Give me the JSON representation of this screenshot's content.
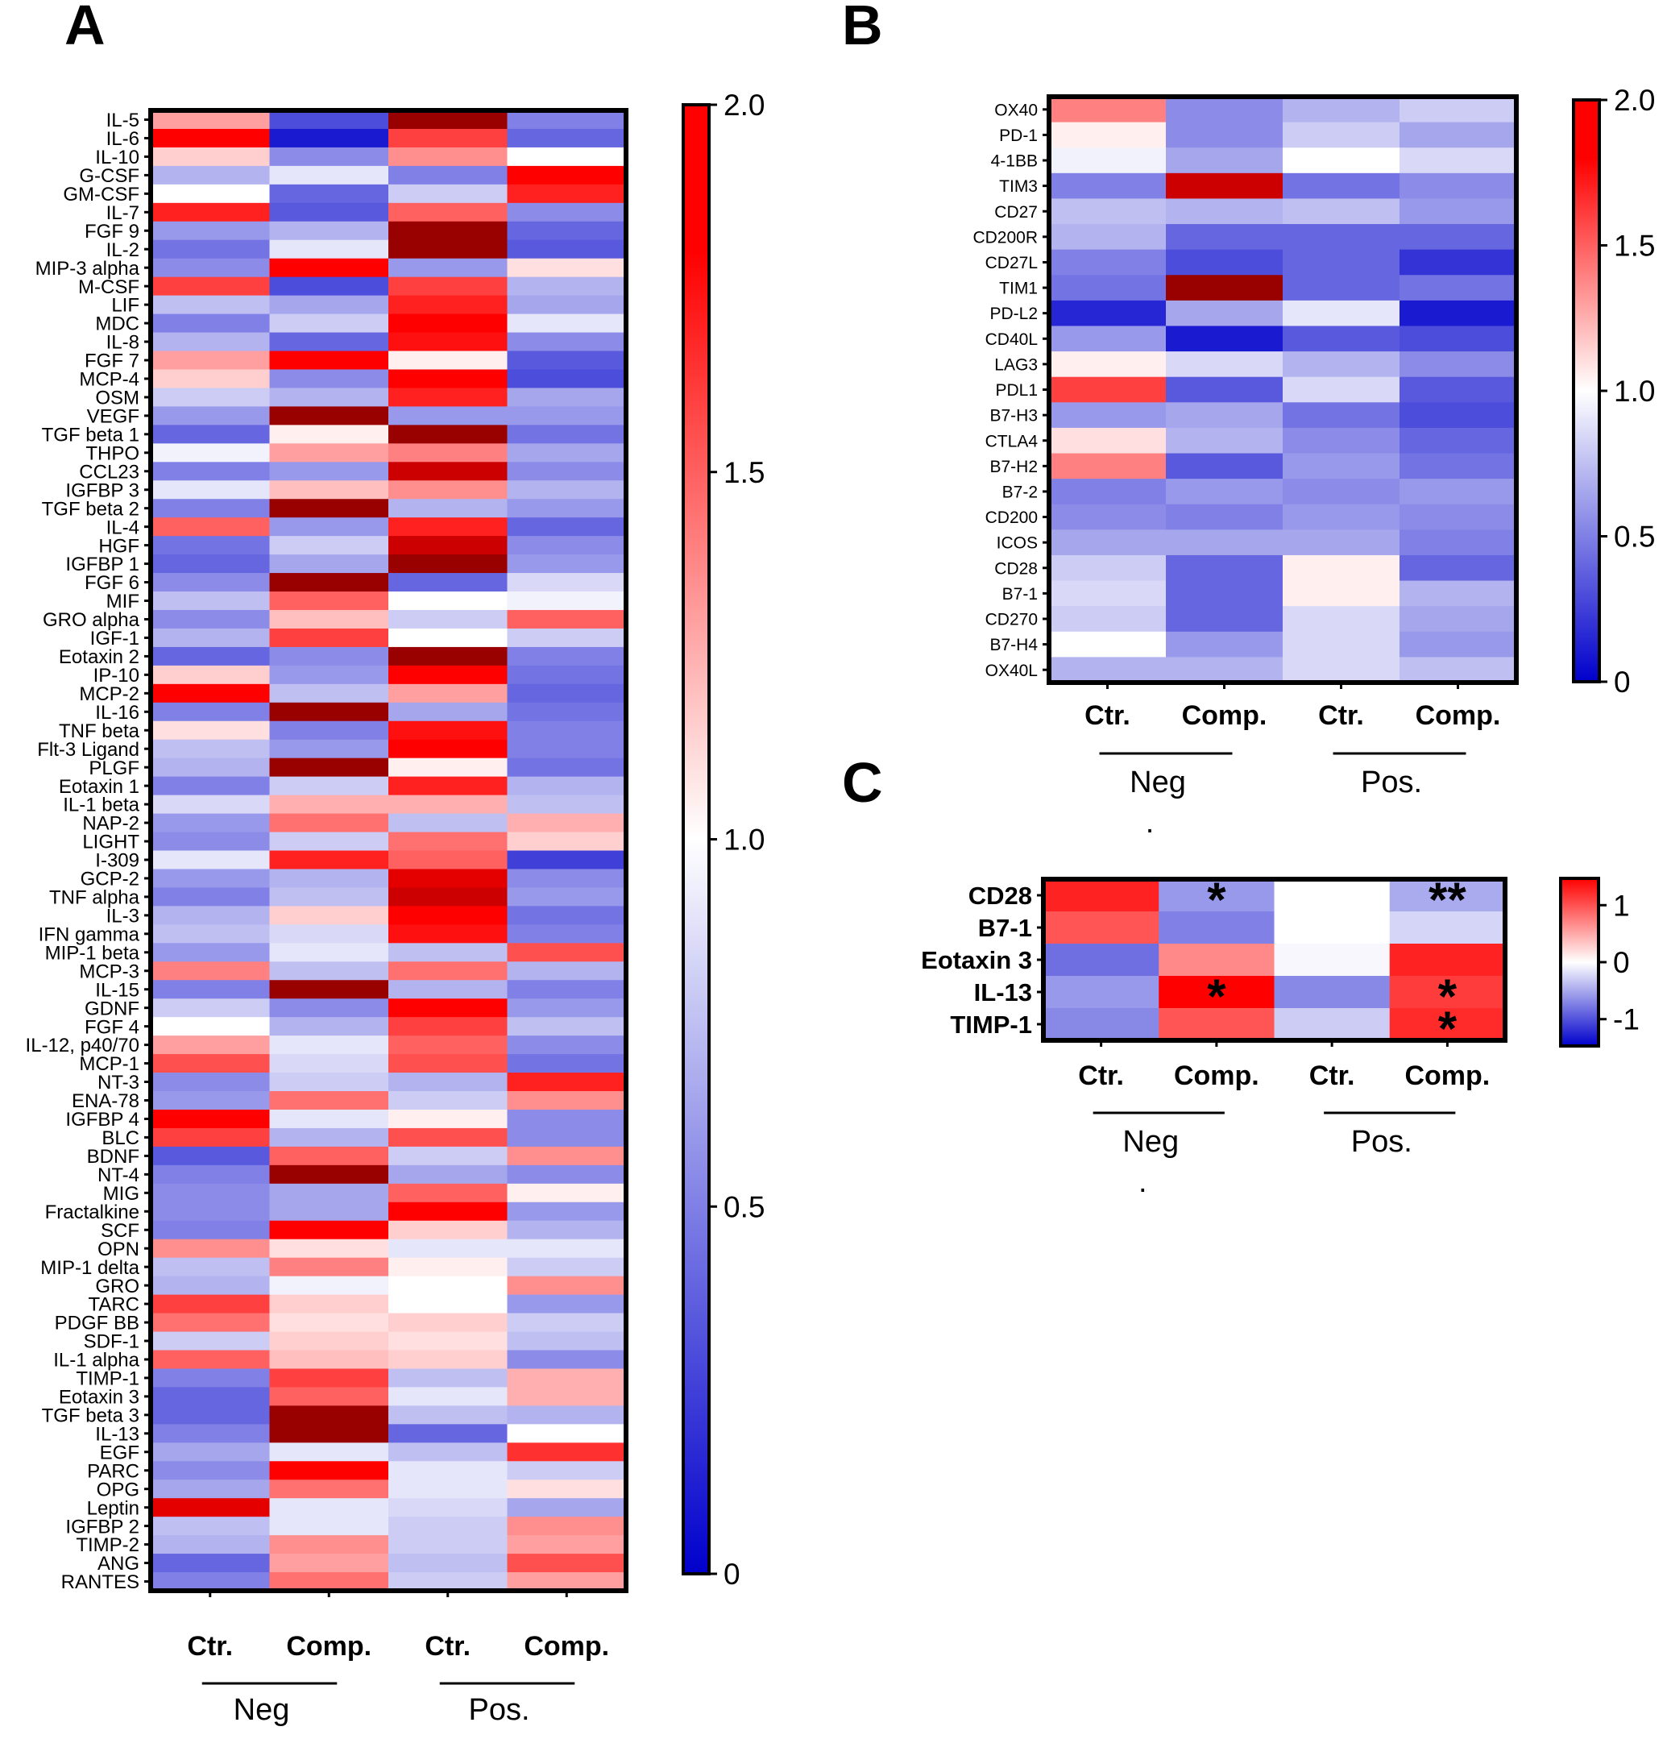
{
  "colors": {
    "low": "#0000cc",
    "mid": "#ffffff",
    "high": "#ff0000",
    "max": "#990000"
  },
  "chart_data": [
    {
      "panel": "A",
      "type": "heatmap",
      "columns": [
        "Ctr.",
        "Comp.",
        "Ctr.",
        "Comp."
      ],
      "groups": [
        {
          "label": "Neg",
          "note": "."
        },
        {
          "label": "Pos.",
          "note": ""
        }
      ],
      "scale": {
        "min": 0,
        "max": 2,
        "ticks": [
          "2.0",
          "1.5",
          "1.0",
          "0.5",
          "0"
        ]
      },
      "rows": [
        "IL-5",
        "IL-6",
        "IL-10",
        "G-CSF",
        "GM-CSF",
        "IL-7",
        "FGF 9",
        "IL-2",
        "MIP-3 alpha",
        "M-CSF",
        "LIF",
        "MDC",
        "IL-8",
        "FGF 7",
        "MCP-4",
        "OSM",
        "VEGF",
        "TGF beta 1",
        "THPO",
        "CCL23",
        "IGFBP 3",
        "TGF beta 2",
        "IL-4",
        "HGF",
        "IGFBP 1",
        "FGF 6",
        "MIF",
        "GRO alpha",
        "IGF-1",
        "Eotaxin 2",
        "IP-10",
        "MCP-2",
        "IL-16",
        "TNF beta",
        "Flt-3 Ligand",
        "PLGF",
        "Eotaxin 1",
        "IL-1 beta",
        "NAP-2",
        "LIGHT",
        "I-309",
        "GCP-2",
        "TNF alpha",
        "IL-3",
        "IFN gamma",
        "MIP-1 beta",
        "MCP-3",
        "IL-15",
        "GDNF",
        "FGF 4",
        "IL-12, p40/70",
        "MCP-1",
        "NT-3",
        "ENA-78",
        "IGFBP 4",
        "BLC",
        "BDNF",
        "NT-4",
        "MIG",
        "Fractalkine",
        "SCF",
        "OPN",
        "MIP-1 delta",
        "GRO",
        "TARC",
        "PDGF BB",
        "SDF-1",
        "IL-1 alpha",
        "TIMP-1",
        "Eotaxin 3",
        "TGF beta 3",
        "IL-13",
        "EGF",
        "PARC",
        "OPG",
        "Leptin",
        "IGFBP 2",
        "TIMP-2",
        "ANG",
        "RANTES"
      ],
      "values": [
        [
          1.3,
          0.3,
          2.0,
          0.5
        ],
        [
          1.8,
          0.1,
          1.6,
          0.4
        ],
        [
          1.15,
          0.55,
          1.35,
          1.0
        ],
        [
          0.7,
          0.9,
          0.5,
          1.8
        ],
        [
          1.0,
          0.4,
          0.8,
          1.7
        ],
        [
          1.7,
          0.35,
          1.5,
          0.55
        ],
        [
          0.6,
          0.7,
          2.0,
          0.4
        ],
        [
          0.45,
          0.9,
          2.0,
          0.35
        ],
        [
          0.55,
          1.8,
          0.6,
          1.1
        ],
        [
          1.6,
          0.3,
          1.6,
          0.7
        ],
        [
          0.75,
          0.65,
          1.7,
          0.65
        ],
        [
          0.5,
          0.8,
          1.8,
          0.9
        ],
        [
          0.7,
          0.4,
          1.75,
          0.55
        ],
        [
          1.3,
          1.8,
          1.05,
          0.35
        ],
        [
          1.15,
          0.55,
          1.8,
          0.3
        ],
        [
          0.8,
          0.7,
          1.7,
          0.65
        ],
        [
          0.6,
          2.0,
          0.6,
          0.6
        ],
        [
          0.4,
          1.05,
          2.0,
          0.45
        ],
        [
          0.95,
          1.3,
          1.4,
          0.65
        ],
        [
          0.5,
          0.6,
          1.9,
          0.55
        ],
        [
          0.9,
          1.2,
          1.35,
          0.7
        ],
        [
          0.5,
          2.0,
          0.7,
          0.6
        ],
        [
          1.5,
          0.6,
          1.7,
          0.4
        ],
        [
          0.45,
          0.8,
          1.9,
          0.55
        ],
        [
          0.4,
          0.65,
          2.0,
          0.6
        ],
        [
          0.55,
          2.0,
          0.4,
          0.85
        ],
        [
          0.75,
          1.5,
          1.0,
          0.95
        ],
        [
          0.55,
          1.2,
          0.8,
          1.5
        ],
        [
          0.7,
          1.6,
          1.0,
          0.8
        ],
        [
          0.4,
          0.55,
          2.0,
          0.5
        ],
        [
          1.15,
          0.6,
          1.8,
          0.45
        ],
        [
          1.8,
          0.75,
          1.3,
          0.4
        ],
        [
          0.5,
          2.0,
          0.65,
          0.45
        ],
        [
          1.1,
          0.5,
          1.75,
          0.5
        ],
        [
          0.75,
          0.6,
          1.8,
          0.5
        ],
        [
          0.7,
          2.0,
          1.05,
          0.45
        ],
        [
          0.5,
          0.8,
          1.7,
          0.7
        ],
        [
          0.85,
          1.25,
          1.25,
          0.75
        ],
        [
          0.6,
          1.45,
          0.75,
          1.25
        ],
        [
          0.55,
          0.8,
          1.45,
          1.15
        ],
        [
          0.9,
          1.7,
          1.5,
          0.25
        ],
        [
          0.6,
          0.7,
          1.85,
          0.55
        ],
        [
          0.5,
          0.75,
          1.9,
          0.6
        ],
        [
          0.7,
          1.15,
          1.8,
          0.45
        ],
        [
          0.75,
          0.85,
          1.75,
          0.5
        ],
        [
          0.6,
          0.9,
          0.75,
          1.55
        ],
        [
          1.4,
          0.75,
          1.45,
          0.7
        ],
        [
          0.5,
          2.0,
          0.7,
          0.5
        ],
        [
          0.8,
          0.55,
          1.8,
          0.6
        ],
        [
          1.0,
          0.7,
          1.6,
          0.75
        ],
        [
          1.3,
          0.9,
          1.5,
          0.55
        ],
        [
          1.55,
          0.85,
          1.55,
          0.45
        ],
        [
          0.55,
          0.8,
          0.7,
          1.7
        ],
        [
          0.6,
          1.45,
          0.8,
          1.35
        ],
        [
          1.8,
          0.9,
          1.05,
          0.55
        ],
        [
          1.6,
          0.7,
          1.55,
          0.55
        ],
        [
          0.35,
          1.5,
          0.8,
          1.35
        ],
        [
          0.5,
          2.0,
          0.65,
          0.55
        ],
        [
          0.55,
          0.65,
          1.5,
          1.05
        ],
        [
          0.55,
          0.65,
          1.8,
          0.6
        ],
        [
          0.5,
          1.8,
          1.15,
          0.7
        ],
        [
          1.35,
          1.1,
          0.9,
          0.9
        ],
        [
          0.75,
          1.4,
          1.05,
          0.8
        ],
        [
          0.7,
          0.95,
          1.0,
          1.35
        ],
        [
          1.6,
          1.15,
          1.0,
          0.6
        ],
        [
          1.45,
          1.1,
          1.15,
          0.8
        ],
        [
          0.8,
          1.15,
          1.1,
          0.75
        ],
        [
          1.5,
          1.2,
          1.15,
          0.55
        ],
        [
          0.5,
          1.6,
          0.75,
          1.25
        ],
        [
          0.4,
          1.5,
          0.9,
          1.25
        ],
        [
          0.4,
          2.0,
          0.75,
          0.7
        ],
        [
          0.5,
          2.0,
          0.4,
          1.0
        ],
        [
          0.65,
          0.9,
          0.75,
          1.65
        ],
        [
          0.55,
          1.8,
          0.9,
          0.8
        ],
        [
          0.65,
          1.45,
          0.9,
          1.1
        ],
        [
          1.85,
          0.9,
          0.85,
          0.65
        ],
        [
          0.75,
          0.9,
          0.8,
          1.35
        ],
        [
          0.7,
          1.35,
          0.8,
          1.3
        ],
        [
          0.4,
          1.3,
          0.75,
          1.55
        ],
        [
          0.5,
          1.45,
          0.8,
          1.3
        ]
      ]
    },
    {
      "panel": "B",
      "type": "heatmap",
      "columns": [
        "Ctr.",
        "Comp.",
        "Ctr.",
        "Comp."
      ],
      "groups": [
        {
          "label": "Neg",
          "note": "."
        },
        {
          "label": "Pos.",
          "note": ""
        }
      ],
      "scale": {
        "min": 0,
        "max": 2,
        "ticks": [
          "2.0",
          "1.5",
          "1.0",
          "0.5",
          "0"
        ]
      },
      "rows": [
        "OX40",
        "PD-1",
        "4-1BB",
        "TIM3",
        "CD27",
        "CD200R",
        "CD27L",
        "TIM1",
        "PD-L2",
        "CD40L",
        "LAG3",
        "PDL1",
        "B7-H3",
        "CTLA4",
        "B7-H2",
        "B7-2",
        "CD200",
        "ICOS",
        "CD28",
        "B7-1",
        "CD270",
        "B7-H4",
        "OX40L"
      ],
      "values": [
        [
          1.4,
          0.55,
          0.7,
          0.8
        ],
        [
          1.05,
          0.55,
          0.8,
          0.65
        ],
        [
          0.95,
          0.65,
          1.0,
          0.85
        ],
        [
          0.5,
          1.9,
          0.45,
          0.55
        ],
        [
          0.75,
          0.7,
          0.75,
          0.6
        ],
        [
          0.7,
          0.4,
          0.4,
          0.4
        ],
        [
          0.5,
          0.3,
          0.4,
          0.2
        ],
        [
          0.45,
          2.0,
          0.4,
          0.45
        ],
        [
          0.15,
          0.65,
          0.9,
          0.1
        ],
        [
          0.6,
          0.1,
          0.35,
          0.3
        ],
        [
          1.05,
          0.85,
          0.7,
          0.55
        ],
        [
          1.6,
          0.35,
          0.85,
          0.35
        ],
        [
          0.6,
          0.65,
          0.45,
          0.3
        ],
        [
          1.1,
          0.7,
          0.55,
          0.4
        ],
        [
          1.4,
          0.35,
          0.6,
          0.45
        ],
        [
          0.5,
          0.6,
          0.55,
          0.6
        ],
        [
          0.55,
          0.5,
          0.6,
          0.55
        ],
        [
          0.65,
          0.65,
          0.65,
          0.5
        ],
        [
          0.8,
          0.4,
          1.05,
          0.4
        ],
        [
          0.85,
          0.4,
          1.05,
          0.7
        ],
        [
          0.8,
          0.4,
          0.85,
          0.65
        ],
        [
          1.0,
          0.6,
          0.85,
          0.6
        ],
        [
          0.7,
          0.7,
          0.85,
          0.75
        ]
      ]
    },
    {
      "panel": "C",
      "type": "heatmap",
      "columns": [
        "Ctr.",
        "Comp.",
        "Ctr.",
        "Comp."
      ],
      "groups": [
        {
          "label": "Neg",
          "note": "."
        },
        {
          "label": "Pos.",
          "note": ""
        }
      ],
      "scale": {
        "min": -1.5,
        "max": 1.5,
        "ticks": [
          "1",
          "0",
          "-1"
        ]
      },
      "rows": [
        "CD28",
        "B7-1",
        "Eotaxin 3",
        "IL-13",
        "TIMP-1"
      ],
      "values": [
        [
          1.3,
          -0.6,
          0.0,
          -0.5
        ],
        [
          1.0,
          -0.75,
          0.0,
          -0.25
        ],
        [
          -0.85,
          0.7,
          -0.05,
          1.3
        ],
        [
          -0.6,
          1.5,
          -0.7,
          1.15
        ],
        [
          -0.7,
          1.0,
          -0.3,
          1.25
        ]
      ],
      "annotations": [
        {
          "row": 0,
          "col": 1,
          "text": "*"
        },
        {
          "row": 0,
          "col": 3,
          "text": "**"
        },
        {
          "row": 3,
          "col": 1,
          "text": "*"
        },
        {
          "row": 3,
          "col": 3,
          "text": "*"
        },
        {
          "row": 4,
          "col": 3,
          "text": "*"
        }
      ]
    }
  ]
}
